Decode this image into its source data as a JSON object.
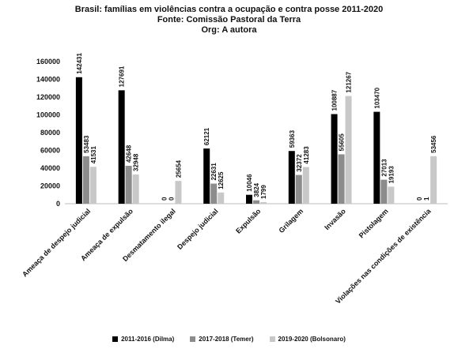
{
  "chart_data": {
    "type": "bar",
    "title": [
      "Brasil: famílias em violências contra a ocupação e contra posse 2011-2020",
      "Fonte: Comissão Pastoral da Terra",
      "Org: A autora"
    ],
    "categories": [
      "Ameaça de despejo judicial",
      "Ameaça de expulsão",
      "Desmatamento ilegal",
      "Despejo judicial",
      "Expulsão",
      "Grilagem",
      "Invasão",
      "Pistolagem",
      "Violações nas condições de existência"
    ],
    "series": [
      {
        "name": "2011-2016 (Dilma)",
        "color": "#000000",
        "values": [
          142431,
          127691,
          0,
          62121,
          10046,
          59363,
          100887,
          103470,
          0
        ]
      },
      {
        "name": "2017-2018 (Temer)",
        "color": "#8c8c8c",
        "values": [
          53483,
          42648,
          0,
          22631,
          3824,
          32372,
          55605,
          27013,
          1
        ]
      },
      {
        "name": "2019-2020 (Bolsonaro)",
        "color": "#c8c8c8",
        "values": [
          41531,
          32948,
          25654,
          12625,
          1799,
          41283,
          121267,
          19193,
          53456
        ]
      }
    ],
    "ylim": [
      0,
      160000
    ],
    "yticks": [
      0,
      20000,
      40000,
      60000,
      80000,
      100000,
      120000,
      140000,
      160000
    ],
    "grid": false,
    "legend_position": "bottom"
  }
}
